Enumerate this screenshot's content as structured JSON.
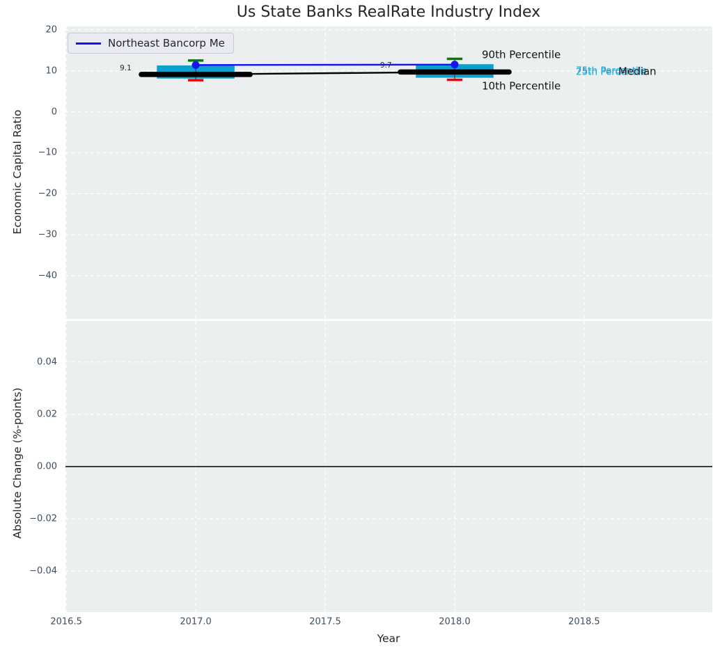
{
  "figure": {
    "background_color": "#ffffff",
    "plot_background_color": "#eceff0",
    "grid_color": "#ffffff",
    "title_color": "#262626",
    "tick_label_color": "#3d4e60"
  },
  "chart_data": {
    "type": "boxplot+line",
    "title": "Us State Banks RealRate Industry Index",
    "xlabel": "Year",
    "xlim": [
      2016.497,
      2018.995
    ],
    "xtick_values": [
      2016.5,
      2017.0,
      2017.5,
      2018.0,
      2018.5
    ],
    "xtick_labels": [
      "2016.5",
      "2017.0",
      "2017.5",
      "2018.0",
      "2018.5"
    ],
    "grid": true,
    "legend": {
      "position": "upper-left",
      "label": "Northeast Bancorp Me",
      "line_color": "#1414f0"
    },
    "top_panel": {
      "ylabel": "Economic Capital Ratio",
      "ylim": [
        -50.5,
        20.8
      ],
      "ytick_values": [
        20,
        10,
        0,
        -10,
        -20,
        -30,
        -40
      ],
      "ytick_labels": [
        "20",
        "10",
        "0",
        "−10",
        "−20",
        "−30",
        "−40"
      ],
      "company_series": {
        "name": "Northeast Bancorp Me",
        "color": "#1414f0",
        "x": [
          2017,
          2018
        ],
        "y": [
          11.4,
          11.5
        ]
      },
      "median_series": {
        "name": "Industry Median",
        "color": "#000000",
        "x": [
          2017,
          2018
        ],
        "y": [
          9.1,
          9.7
        ]
      },
      "boxes": [
        {
          "year": 2017,
          "p90": 12.5,
          "p75": 11.3,
          "median": 9.1,
          "p25": 8.1,
          "p10": 7.7
        },
        {
          "year": 2018,
          "p90": 12.9,
          "p75": 11.6,
          "median": 9.7,
          "p25": 8.3,
          "p10": 7.8
        }
      ],
      "box_color": "#0f9fcc",
      "p90_cap_color": "#008000",
      "p10_cap_color": "#f10000",
      "whisker_color": "#3a3a3a",
      "box_width_years": 0.3,
      "median_segment_halfwidth_years": 0.21,
      "cap_halfwidth_years": 0.03,
      "annotations": [
        {
          "text": "9.1",
          "x": 2016.707,
          "y": 10.67,
          "color": "#262626",
          "size": 10.5
        },
        {
          "text": "9.7",
          "x": 2017.712,
          "y": 11.33,
          "color": "#262626",
          "size": 10.5
        },
        {
          "text": "90th Percentile",
          "x": 2018.105,
          "y": 13.9,
          "color": "#141414",
          "size": 15
        },
        {
          "text": "10th Percentile",
          "x": 2018.105,
          "y": 6.15,
          "color": "#141414",
          "size": 15
        },
        {
          "text": "75th Percentile",
          "x": 2018.468,
          "y": 9.9,
          "color": "#20a1d3",
          "size": 13.5
        },
        {
          "text": "25th Percentile",
          "x": 2018.468,
          "y": 9.55,
          "color": "#20a1d3",
          "size": 13.5
        },
        {
          "text": "Median",
          "x": 2018.632,
          "y": 9.85,
          "color": "#141414",
          "size": 15
        }
      ]
    },
    "bottom_panel": {
      "ylabel": "Absolute Change (%-points)",
      "ylim": [
        -0.0557,
        0.0557
      ],
      "ytick_values": [
        0.04,
        0.02,
        0.0,
        -0.02,
        -0.04
      ],
      "ytick_labels": [
        "0.04",
        "0.02",
        "0.00",
        "−0.02",
        "−0.04"
      ],
      "zero_line": {
        "y": 0.0,
        "color": "#000000"
      }
    }
  }
}
